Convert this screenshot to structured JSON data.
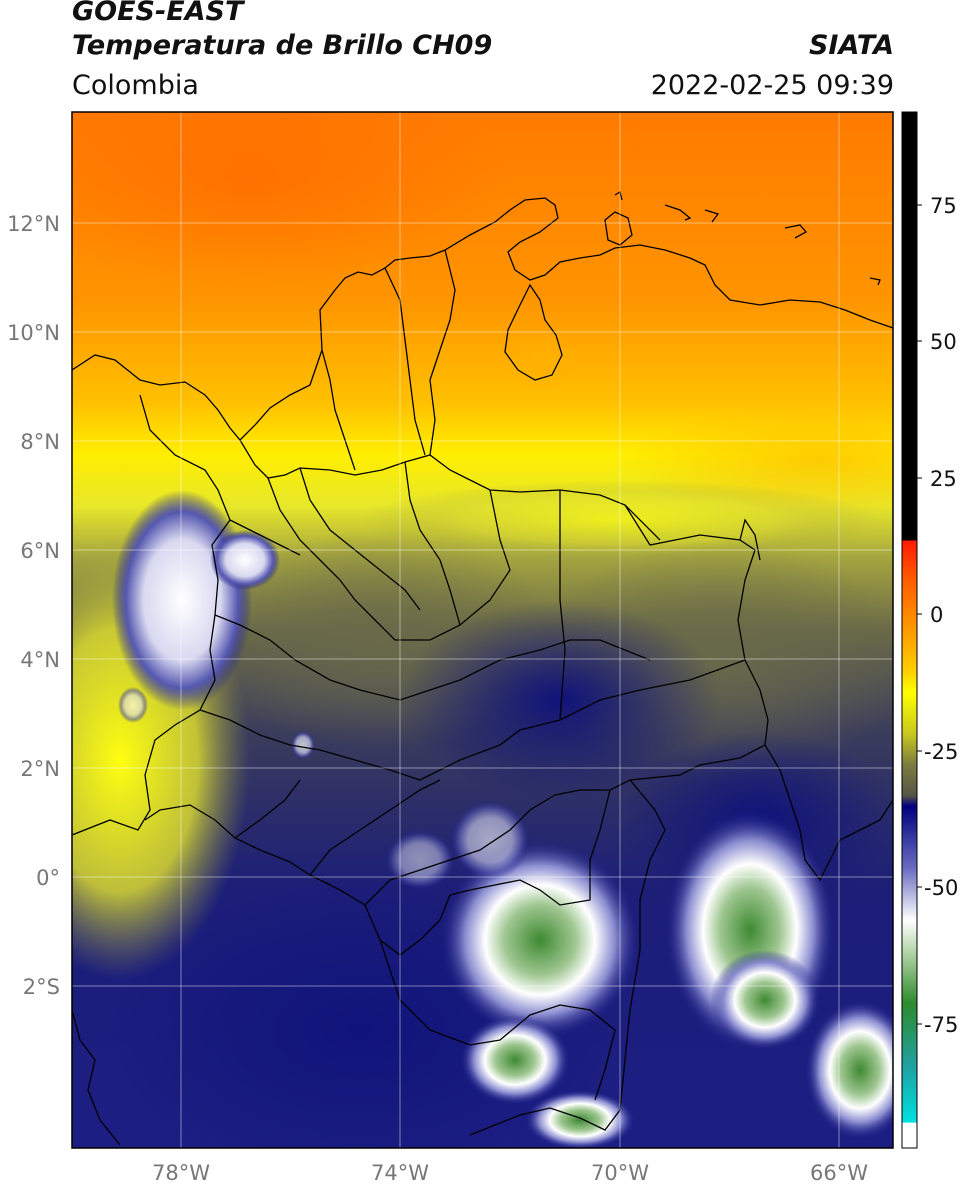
{
  "header": {
    "satellite": "GOES-EAST",
    "product": "Temperatura de Brillo CH09",
    "region": "Colombia",
    "agency": "SIATA",
    "datetime": "2022-02-25 09:39"
  },
  "map": {
    "lon_range": [
      -80,
      -65
    ],
    "lat_range": [
      -5,
      14
    ],
    "lat_ticks": [
      "12°N",
      "10°N",
      "8°N",
      "6°N",
      "4°N",
      "2°N",
      "0°",
      "2°S"
    ],
    "lon_ticks": [
      "78°W",
      "74°W",
      "70°W",
      "66°W"
    ],
    "grid": true
  },
  "colorbar": {
    "ticks": [
      "75",
      "50",
      "25",
      "0",
      "-25",
      "-50",
      "-75"
    ],
    "range": [
      -100,
      90
    ],
    "colors": {
      "black": "#000000",
      "red": "#ff1a00",
      "orange": "#ff8c00",
      "yellow": "#ffff00",
      "olive": "#555548",
      "navy": "#000080",
      "white": "#ffffff",
      "green": "#2e8b2e",
      "cyan": "#00e0e0"
    }
  }
}
